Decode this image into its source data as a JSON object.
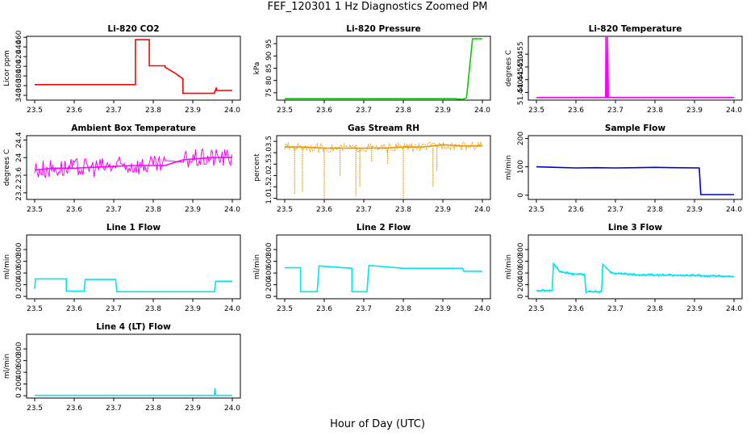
{
  "title": "FEF_120301  1 Hz Diagnostics Zoomed PM",
  "xlabel": "Hour of Day (UTC)",
  "chart_data": [
    {
      "id": "co2",
      "type": "line",
      "title": "Li-820 CO2",
      "ylabel": "Licor ppm",
      "color": "#ff0000",
      "xlim": [
        23.5,
        24.0
      ],
      "xticks": [
        "23.5",
        "23.6",
        "23.7",
        "23.8",
        "23.9",
        "24.0"
      ],
      "ylim": [
        330,
        462
      ],
      "yticks": [
        340,
        360,
        380,
        400,
        420,
        440,
        460
      ],
      "x": [
        23.5,
        23.755,
        23.755,
        23.79,
        23.79,
        23.83,
        23.83,
        23.855,
        23.875,
        23.875,
        23.955,
        23.955,
        23.96,
        23.96,
        24.0
      ],
      "y": [
        362,
        362,
        455,
        455,
        401,
        401,
        398,
        386,
        374,
        344,
        344,
        346,
        356,
        350,
        350
      ]
    },
    {
      "id": "pressure",
      "type": "line",
      "title": "Li-820 Pressure",
      "ylabel": "kPa",
      "color": "#00cc00",
      "xlim": [
        23.5,
        24.0
      ],
      "xticks": [
        "23.5",
        "23.6",
        "23.7",
        "23.8",
        "23.9",
        "24.0"
      ],
      "ylim": [
        72,
        98
      ],
      "yticks": [
        75,
        80,
        85,
        90,
        95
      ],
      "x": [
        23.5,
        23.93,
        23.95,
        23.96,
        23.975,
        24.0
      ],
      "y": [
        72.6,
        72.6,
        72.3,
        73,
        97,
        97
      ]
    },
    {
      "id": "temperature",
      "type": "line",
      "title": "Li-820 Temperature",
      "ylabel": "degrees C",
      "color": "#ff00ff",
      "xlim": [
        23.5,
        24.0
      ],
      "xticks": [
        "23.5",
        "23.6",
        "23.7",
        "23.8",
        "23.9",
        "24.0"
      ],
      "ylim": [
        51.437,
        51.462
      ],
      "yticks": [
        "51.440",
        "51.445",
        "51.450",
        "51.455"
      ],
      "x": [
        23.5,
        23.675,
        23.676,
        23.677,
        23.679,
        23.68,
        23.682,
        24.0
      ],
      "y": [
        51.438,
        51.438,
        51.462,
        51.438,
        51.438,
        51.462,
        51.438,
        51.438
      ]
    },
    {
      "id": "ambient",
      "type": "line",
      "title": "Ambient Box Temperature",
      "ylabel": "degrees C",
      "color": "#ff00ff",
      "xlim": [
        23.5,
        24.0
      ],
      "xticks": [
        "23.5",
        "23.6",
        "23.7",
        "23.8",
        "23.9",
        "24.0"
      ],
      "ylim": [
        23.05,
        24.5
      ],
      "yticks": [
        23.2,
        23.6,
        24.0,
        24.4
      ],
      "x": [
        23.5,
        23.55,
        23.6,
        23.65,
        23.7,
        23.75,
        23.8,
        23.83,
        23.85,
        23.875,
        23.9,
        23.95,
        24.0
      ],
      "y": [
        23.72,
        23.76,
        23.76,
        23.78,
        23.8,
        23.82,
        23.82,
        23.82,
        23.88,
        23.95,
        23.97,
        24.0,
        24.0
      ]
    },
    {
      "id": "rh",
      "type": "line",
      "title": "Gas Stream RH",
      "ylabel": "percent",
      "color": "#e69500",
      "xlim": [
        23.5,
        24.0
      ],
      "xticks": [
        "23.5",
        "23.6",
        "23.7",
        "23.8",
        "23.9",
        "24.0"
      ],
      "ylim": [
        0.95,
        3.75
      ],
      "yticks": [
        "1.0",
        "1.5",
        "2.0",
        "2.5",
        "3.0",
        "3.5"
      ],
      "x": [
        23.5,
        23.55,
        23.6,
        23.65,
        23.7,
        23.75,
        23.8,
        23.85,
        23.875,
        23.9,
        23.95,
        24.0
      ],
      "y": [
        3.25,
        3.25,
        3.2,
        3.2,
        3.2,
        3.2,
        3.25,
        3.25,
        3.3,
        3.35,
        3.3,
        3.3
      ]
    },
    {
      "id": "sample",
      "type": "line",
      "title": "Sample Flow",
      "ylabel": "ml/min",
      "color": "#0000cc",
      "xlim": [
        23.5,
        24.0
      ],
      "xticks": [
        "23.5",
        "23.6",
        "23.7",
        "23.8",
        "23.9",
        "24.0"
      ],
      "ylim": [
        -15,
        210
      ],
      "yticks": [
        0,
        100,
        200
      ],
      "x": [
        23.5,
        23.55,
        23.6,
        23.65,
        23.7,
        23.75,
        23.8,
        23.85,
        23.912,
        23.916,
        23.95,
        24.0
      ],
      "y": [
        100,
        98,
        96,
        97,
        96,
        97,
        98,
        97,
        96,
        2,
        2,
        2
      ]
    },
    {
      "id": "line1",
      "type": "line",
      "title": "Line 1 Flow",
      "ylabel": "ml/min",
      "color": "#00e5ee",
      "xlim": [
        23.5,
        24.0
      ],
      "xticks": [
        "23.5",
        "23.6",
        "23.7",
        "23.8",
        "23.9",
        "24.0"
      ],
      "ylim": [
        -40,
        1050
      ],
      "yticks": [
        0,
        200,
        400,
        600,
        800
      ],
      "x": [
        23.5,
        23.502,
        23.58,
        23.58,
        23.625,
        23.628,
        23.705,
        23.708,
        23.955,
        23.958,
        24.0
      ],
      "y": [
        130,
        300,
        300,
        90,
        90,
        290,
        290,
        80,
        80,
        260,
        260
      ]
    },
    {
      "id": "line2",
      "type": "line",
      "title": "Line 2 Flow",
      "ylabel": "ml/min",
      "color": "#00e5ee",
      "xlim": [
        23.5,
        24.0
      ],
      "xticks": [
        "23.5",
        "23.6",
        "23.7",
        "23.8",
        "23.9",
        "24.0"
      ],
      "ylim": [
        -40,
        1050
      ],
      "yticks": [
        0,
        200,
        400,
        600,
        800
      ],
      "x": [
        23.5,
        23.54,
        23.54,
        23.582,
        23.587,
        23.67,
        23.67,
        23.708,
        23.713,
        23.8,
        23.95,
        23.953,
        24.0
      ],
      "y": [
        490,
        490,
        80,
        80,
        520,
        480,
        80,
        80,
        530,
        480,
        480,
        430,
        430
      ]
    },
    {
      "id": "line3",
      "type": "line",
      "title": "Line 3 Flow",
      "ylabel": "ml/min",
      "color": "#00e5ee",
      "xlim": [
        23.5,
        24.0
      ],
      "xticks": [
        "23.5",
        "23.6",
        "23.7",
        "23.8",
        "23.9",
        "24.0"
      ],
      "ylim": [
        -40,
        1050
      ],
      "yticks": [
        0,
        200,
        400,
        600,
        800
      ],
      "x": [
        23.5,
        23.502,
        23.54,
        23.543,
        23.56,
        23.6,
        23.622,
        23.625,
        23.665,
        23.668,
        23.69,
        23.75,
        23.85,
        23.95,
        24.0
      ],
      "y": [
        100,
        100,
        100,
        560,
        420,
        380,
        380,
        80,
        80,
        550,
        400,
        370,
        360,
        350,
        340
      ]
    },
    {
      "id": "line4",
      "type": "line",
      "title": "Line 4 (LT) Flow",
      "ylabel": "ml/min",
      "color": "#00e5ee",
      "xlim": [
        23.5,
        24.0
      ],
      "xticks": [
        "23.5",
        "23.6",
        "23.7",
        "23.8",
        "23.9",
        "24.0"
      ],
      "ylim": [
        -40,
        1050
      ],
      "yticks": [
        0,
        200,
        400,
        600,
        800
      ],
      "x": [
        23.5,
        23.955,
        23.956,
        23.958,
        23.96,
        24.0
      ],
      "y": [
        5,
        5,
        130,
        20,
        5,
        5
      ]
    }
  ]
}
